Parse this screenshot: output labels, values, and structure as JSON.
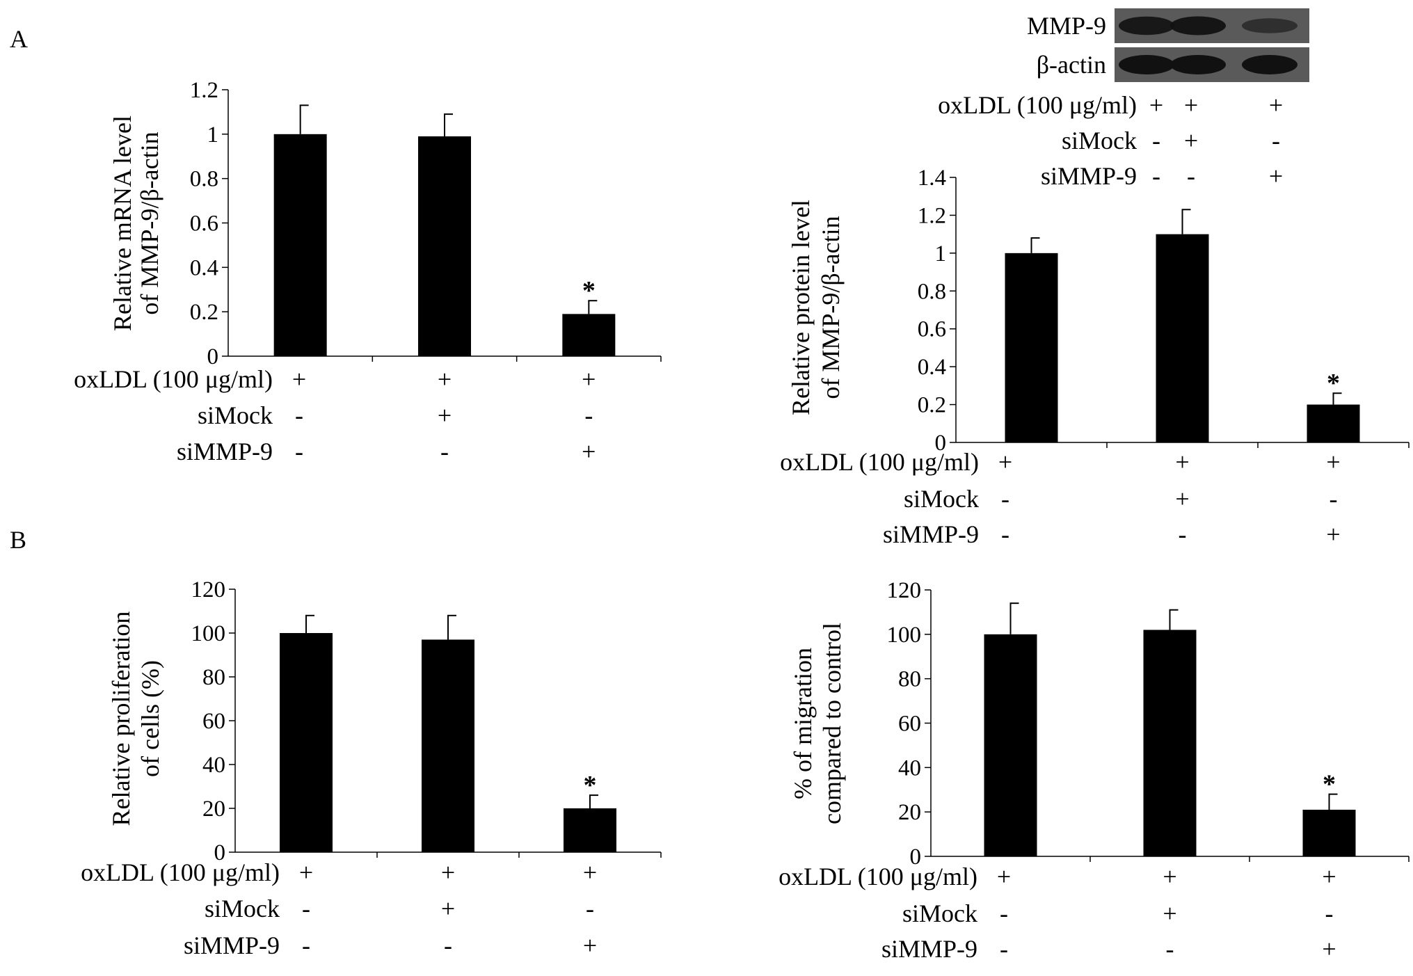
{
  "panel_labels": {
    "a": "A",
    "b": "B"
  },
  "blot": {
    "lanes": 3,
    "rows": [
      {
        "label": "MMP-9",
        "intensities": [
          0.85,
          0.9,
          0.35
        ]
      },
      {
        "label": "β-actin",
        "intensities": [
          1.0,
          1.0,
          1.0
        ]
      }
    ],
    "conditions": [
      {
        "label": "oxLDL (100 μg/ml)",
        "marks": [
          "+",
          "+",
          "+"
        ]
      },
      {
        "label": "siMock",
        "marks": [
          "-",
          "+",
          "-"
        ]
      },
      {
        "label": "siMMP-9",
        "marks": [
          "-",
          "-",
          "+"
        ]
      }
    ]
  },
  "chart_data": [
    {
      "type": "bar",
      "panel": "A",
      "ylabel_lines": [
        "Relative mRNA level",
        "of MMP-9/β-actin"
      ],
      "ylim": [
        0,
        1.2
      ],
      "yticks": [
        "0",
        "0.2",
        "0.4",
        "0.6",
        "0.8",
        "1",
        "1.2"
      ],
      "categories": [
        "1",
        "2",
        "3"
      ],
      "values": [
        1.0,
        0.99,
        0.19
      ],
      "errors": [
        0.13,
        0.1,
        0.06
      ],
      "annotations": [
        "",
        "",
        "*"
      ],
      "conditions": [
        {
          "label": "oxLDL (100 μg/ml)",
          "marks": [
            "+",
            "+",
            "+"
          ]
        },
        {
          "label": "siMock",
          "marks": [
            "-",
            "+",
            "-"
          ]
        },
        {
          "label": "siMMP-9",
          "marks": [
            "-",
            "-",
            "+"
          ]
        }
      ]
    },
    {
      "type": "bar",
      "panel": "A",
      "ylabel_lines": [
        "Relative protein level",
        "of MMP-9/β-actin"
      ],
      "ylim": [
        0,
        1.4
      ],
      "yticks": [
        "0",
        "0.2",
        "0.4",
        "0.6",
        "0.8",
        "1",
        "1.2",
        "1.4"
      ],
      "categories": [
        "1",
        "2",
        "3"
      ],
      "values": [
        1.0,
        1.1,
        0.2
      ],
      "errors": [
        0.08,
        0.13,
        0.06
      ],
      "annotations": [
        "",
        "",
        "*"
      ],
      "conditions": [
        {
          "label": "oxLDL (100 μg/ml)",
          "marks": [
            "+",
            "+",
            "+"
          ]
        },
        {
          "label": "siMock",
          "marks": [
            "-",
            "+",
            "-"
          ]
        },
        {
          "label": "siMMP-9",
          "marks": [
            "-",
            "-",
            "+"
          ]
        }
      ]
    },
    {
      "type": "bar",
      "panel": "B",
      "ylabel_lines": [
        "Relative proliferation",
        "of cells (%)"
      ],
      "ylim": [
        0,
        120
      ],
      "yticks": [
        "0",
        "20",
        "40",
        "60",
        "80",
        "100",
        "120"
      ],
      "categories": [
        "1",
        "2",
        "3"
      ],
      "values": [
        100,
        97,
        20
      ],
      "errors": [
        8,
        11,
        6
      ],
      "annotations": [
        "",
        "",
        "*"
      ],
      "conditions": [
        {
          "label": "oxLDL (100 μg/ml)",
          "marks": [
            "+",
            "+",
            "+"
          ]
        },
        {
          "label": "siMock",
          "marks": [
            "-",
            "+",
            "-"
          ]
        },
        {
          "label": "siMMP-9",
          "marks": [
            "-",
            "-",
            "+"
          ]
        }
      ]
    },
    {
      "type": "bar",
      "panel": "B",
      "ylabel_lines": [
        "% of migration",
        "compared to control"
      ],
      "ylim": [
        0,
        120
      ],
      "yticks": [
        "0",
        "20",
        "40",
        "60",
        "80",
        "100",
        "120"
      ],
      "categories": [
        "1",
        "2",
        "3"
      ],
      "values": [
        100,
        102,
        21
      ],
      "errors": [
        14,
        9,
        7
      ],
      "annotations": [
        "",
        "",
        "*"
      ],
      "conditions": [
        {
          "label": "oxLDL (100 μg/ml)",
          "marks": [
            "+",
            "+",
            "+"
          ]
        },
        {
          "label": "siMock",
          "marks": [
            "-",
            "+",
            "-"
          ]
        },
        {
          "label": "siMMP-9",
          "marks": [
            "-",
            "-",
            "+"
          ]
        }
      ]
    }
  ]
}
